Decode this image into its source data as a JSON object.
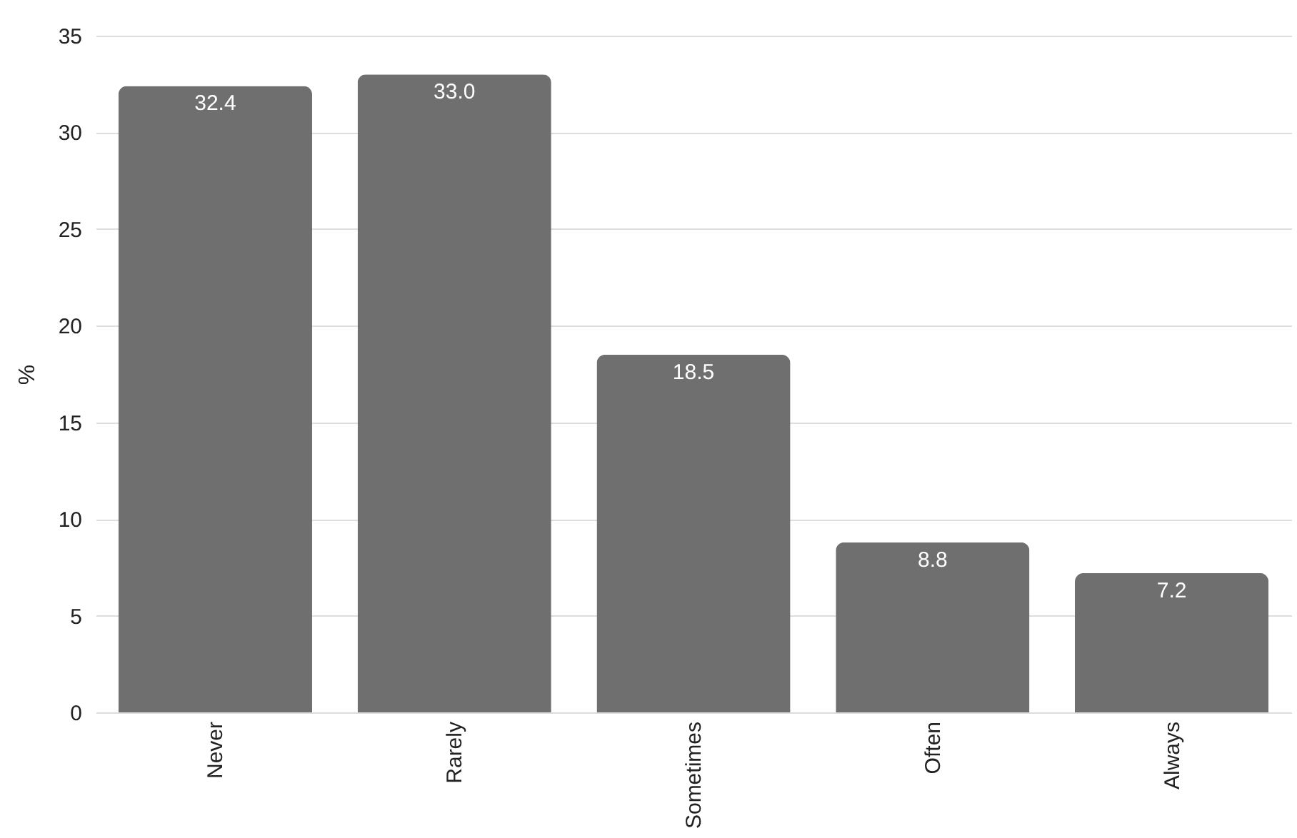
{
  "chart_data": {
    "type": "bar",
    "categories": [
      "Never",
      "Rarely",
      "Sometimes",
      "Often",
      "Always"
    ],
    "values": [
      32.4,
      33.0,
      18.5,
      8.8,
      7.2
    ],
    "value_labels": [
      "32.4",
      "33.0",
      "18.5",
      "8.8",
      "7.2"
    ],
    "color": "#6f6f6f",
    "ylabel": "%",
    "ylim": [
      0,
      35
    ],
    "yticks": [
      0,
      5,
      10,
      15,
      20,
      25,
      30,
      35
    ],
    "grid": "y"
  }
}
